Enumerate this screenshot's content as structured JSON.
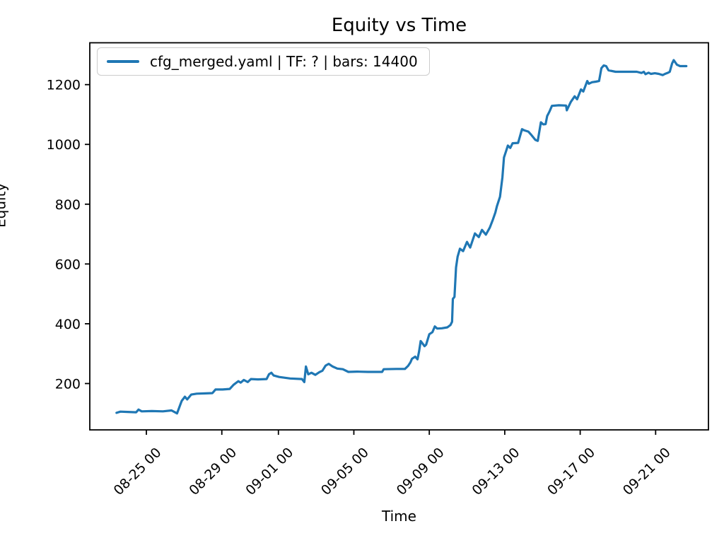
{
  "figure": {
    "background": "#ffffff",
    "title": "Equity vs Time"
  },
  "chart_data": {
    "type": "line",
    "title": "Equity vs Time",
    "xlabel": "Time",
    "ylabel": "Equity",
    "grid": false,
    "line_color": "#1f77b4",
    "axis_color": "#000000",
    "ylim": [
      45,
      1340
    ],
    "xlim_days_from_origin": [
      0,
      32.8
    ],
    "x_origin": "08-22 00",
    "y_ticks": [
      200,
      400,
      600,
      800,
      1000,
      1200
    ],
    "x_tick_labels": [
      "08-25 00",
      "08-29 00",
      "09-01 00",
      "09-05 00",
      "09-09 00",
      "09-13 00",
      "09-17 00",
      "09-21 00"
    ],
    "legend": {
      "position": "upper left",
      "entries": [
        {
          "label": "cfg_merged.yaml | TF: ? | bars: 14400",
          "color": "#1f77b4"
        }
      ]
    },
    "series": [
      {
        "name": "cfg_merged.yaml | TF: ? | bars: 14400",
        "points": [
          [
            "08-23 10",
            102
          ],
          [
            "08-23 15",
            106
          ],
          [
            "08-24 00",
            105
          ],
          [
            "08-24 11",
            104
          ],
          [
            "08-24 14",
            113
          ],
          [
            "08-24 18",
            107
          ],
          [
            "08-25 07",
            108
          ],
          [
            "08-25 21",
            107
          ],
          [
            "08-26 08",
            110
          ],
          [
            "08-26 15",
            100
          ],
          [
            "08-26 21",
            142
          ],
          [
            "08-27 01",
            156
          ],
          [
            "08-27 04",
            147
          ],
          [
            "08-27 09",
            163
          ],
          [
            "08-27 16",
            166
          ],
          [
            "08-28 03",
            167
          ],
          [
            "08-28 12",
            168
          ],
          [
            "08-28 16",
            180
          ],
          [
            "08-29 01",
            180
          ],
          [
            "08-29 10",
            182
          ],
          [
            "08-29 15",
            196
          ],
          [
            "08-29 21",
            208
          ],
          [
            "08-30 00",
            203
          ],
          [
            "08-30 04",
            212
          ],
          [
            "08-30 09",
            205
          ],
          [
            "08-30 13",
            215
          ],
          [
            "08-30 22",
            214
          ],
          [
            "08-31 09",
            215
          ],
          [
            "08-31 12",
            231
          ],
          [
            "08-31 15",
            236
          ],
          [
            "08-31 18",
            227
          ],
          [
            "09-01 01",
            222
          ],
          [
            "09-01 15",
            217
          ],
          [
            "09-02 06",
            215
          ],
          [
            "09-02 09",
            205
          ],
          [
            "09-02 11",
            257
          ],
          [
            "09-02 14",
            231
          ],
          [
            "09-02 18",
            236
          ],
          [
            "09-02 23",
            229
          ],
          [
            "09-03 04",
            238
          ],
          [
            "09-03 08",
            243
          ],
          [
            "09-03 12",
            260
          ],
          [
            "09-03 16",
            266
          ],
          [
            "09-03 21",
            257
          ],
          [
            "09-04 03",
            250
          ],
          [
            "09-04 10",
            248
          ],
          [
            "09-04 17",
            239
          ],
          [
            "09-05 04",
            240
          ],
          [
            "09-05 18",
            239
          ],
          [
            "09-06 12",
            239
          ],
          [
            "09-06 14",
            248
          ],
          [
            "09-07 06",
            249
          ],
          [
            "09-07 17",
            249
          ],
          [
            "09-07 21",
            259
          ],
          [
            "09-08 00",
            271
          ],
          [
            "09-08 02",
            283
          ],
          [
            "09-08 06",
            290
          ],
          [
            "09-08 09",
            281
          ],
          [
            "09-08 11",
            307
          ],
          [
            "09-08 13",
            342
          ],
          [
            "09-08 18",
            325
          ],
          [
            "09-08 20",
            330
          ],
          [
            "09-09 00",
            365
          ],
          [
            "09-09 04",
            372
          ],
          [
            "09-09 07",
            391
          ],
          [
            "09-09 10",
            384
          ],
          [
            "09-09 16",
            385
          ],
          [
            "09-09 23",
            388
          ],
          [
            "09-10 03",
            396
          ],
          [
            "09-10 05",
            407
          ],
          [
            "09-10 06",
            483
          ],
          [
            "09-10 08",
            490
          ],
          [
            "09-10 10",
            588
          ],
          [
            "09-10 12",
            624
          ],
          [
            "09-10 15",
            651
          ],
          [
            "09-10 19",
            643
          ],
          [
            "09-11 00",
            674
          ],
          [
            "09-11 04",
            655
          ],
          [
            "09-11 10",
            702
          ],
          [
            "09-11 15",
            690
          ],
          [
            "09-11 19",
            714
          ],
          [
            "09-12 00",
            698
          ],
          [
            "09-12 05",
            722
          ],
          [
            "09-12 09",
            749
          ],
          [
            "09-12 12",
            772
          ],
          [
            "09-12 14",
            793
          ],
          [
            "09-12 18",
            825
          ],
          [
            "09-12 21",
            890
          ],
          [
            "09-12 23",
            956
          ],
          [
            "09-13 02",
            980
          ],
          [
            "09-13 04",
            996
          ],
          [
            "09-13 07",
            988
          ],
          [
            "09-13 10",
            1004
          ],
          [
            "09-13 17",
            1005
          ],
          [
            "09-13 22",
            1051
          ],
          [
            "09-14 01",
            1047
          ],
          [
            "09-14 06",
            1043
          ],
          [
            "09-14 10",
            1031
          ],
          [
            "09-14 15",
            1015
          ],
          [
            "09-14 18",
            1012
          ],
          [
            "09-14 20",
            1043
          ],
          [
            "09-14 22",
            1074
          ],
          [
            "09-15 01",
            1067
          ],
          [
            "09-15 04",
            1068
          ],
          [
            "09-15 06",
            1095
          ],
          [
            "09-15 09",
            1110
          ],
          [
            "09-15 12",
            1129
          ],
          [
            "09-15 21",
            1131
          ],
          [
            "09-16 06",
            1130
          ],
          [
            "09-16 07",
            1114
          ],
          [
            "09-16 12",
            1142
          ],
          [
            "09-16 17",
            1161
          ],
          [
            "09-16 20",
            1151
          ],
          [
            "09-17 01",
            1184
          ],
          [
            "09-17 04",
            1177
          ],
          [
            "09-17 09",
            1212
          ],
          [
            "09-17 11",
            1203
          ],
          [
            "09-17 15",
            1208
          ],
          [
            "09-17 20",
            1210
          ],
          [
            "09-18 00",
            1212
          ],
          [
            "09-18 03",
            1255
          ],
          [
            "09-18 06",
            1264
          ],
          [
            "09-18 09",
            1262
          ],
          [
            "09-18 12",
            1248
          ],
          [
            "09-18 21",
            1243
          ],
          [
            "09-19 10",
            1243
          ],
          [
            "09-20 00",
            1243
          ],
          [
            "09-20 06",
            1239
          ],
          [
            "09-20 09",
            1243
          ],
          [
            "09-20 11",
            1235
          ],
          [
            "09-20 15",
            1240
          ],
          [
            "09-20 18",
            1236
          ],
          [
            "09-20 23",
            1238
          ],
          [
            "09-21 04",
            1236
          ],
          [
            "09-21 09",
            1232
          ],
          [
            "09-21 12",
            1236
          ],
          [
            "09-21 16",
            1240
          ],
          [
            "09-21 18",
            1243
          ],
          [
            "09-21 21",
            1271
          ],
          [
            "09-21 23",
            1282
          ],
          [
            "09-22 03",
            1267
          ],
          [
            "09-22 07",
            1262
          ],
          [
            "09-22 15",
            1262
          ]
        ]
      }
    ]
  }
}
